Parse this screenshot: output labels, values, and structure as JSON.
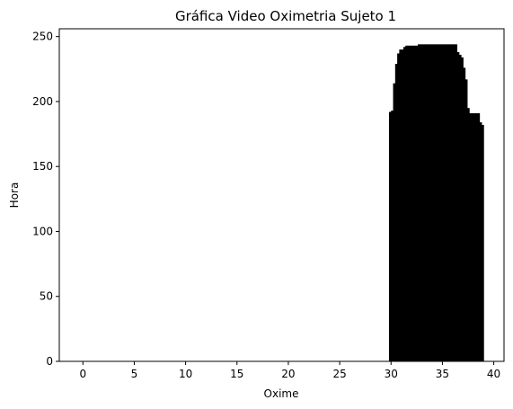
{
  "chart_data": {
    "type": "bar",
    "title": "Gráfica Video Oximetria Sujeto 1",
    "xlabel": "Oxime",
    "ylabel": "Hora",
    "xlim": [
      -2.3,
      41.0
    ],
    "ylim": [
      0,
      256
    ],
    "xticks": [
      0,
      5,
      10,
      15,
      20,
      25,
      30,
      35,
      40
    ],
    "yticks": [
      0,
      50,
      100,
      150,
      200,
      250
    ],
    "grid": false,
    "bar_color": "#000000",
    "bar_width": 0.2,
    "x": [
      29.9,
      30.1,
      30.3,
      30.5,
      30.7,
      30.9,
      31.1,
      31.3,
      31.5,
      31.7,
      31.9,
      32.1,
      32.3,
      32.5,
      32.7,
      32.9,
      33.1,
      33.3,
      33.5,
      33.7,
      33.9,
      34.1,
      34.3,
      34.5,
      34.7,
      34.9,
      35.1,
      35.3,
      35.5,
      35.7,
      35.9,
      36.1,
      36.3,
      36.5,
      36.7,
      36.9,
      37.1,
      37.3,
      37.5,
      37.7,
      37.9,
      38.1,
      38.3,
      38.5,
      38.7,
      38.9
    ],
    "values": [
      192,
      193,
      214,
      229,
      237,
      240,
      240,
      242,
      243,
      243,
      243,
      243,
      243,
      243,
      244,
      244,
      244,
      244,
      244,
      244,
      244,
      244,
      244,
      244,
      244,
      244,
      244,
      244,
      244,
      244,
      244,
      244,
      244,
      238,
      236,
      234,
      226,
      217,
      195,
      191,
      191,
      191,
      191,
      191,
      184,
      182
    ]
  }
}
